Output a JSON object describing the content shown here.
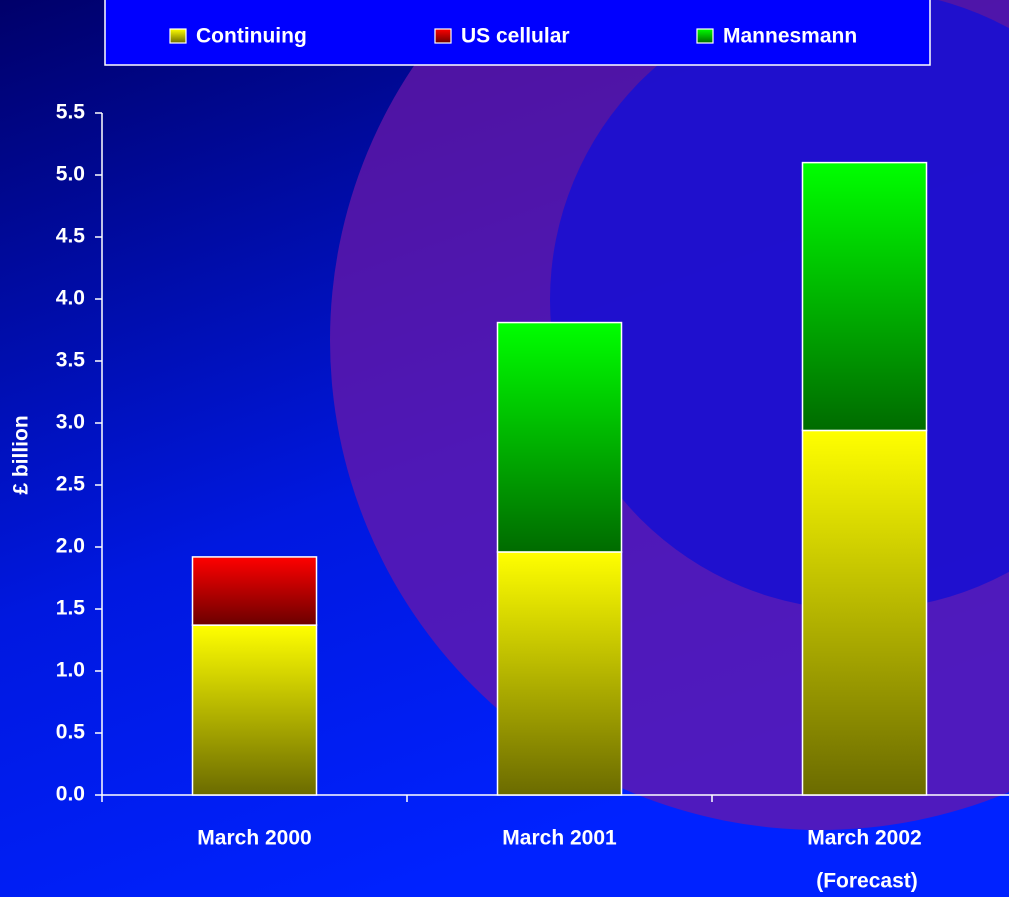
{
  "chart_data": {
    "type": "stacked_bar",
    "y_label": "£ billion",
    "categories": [
      "March 2000",
      "March 2001",
      "March 2002"
    ],
    "annotations": [
      "(Forecast)"
    ],
    "series": [
      {
        "name": "Continuing",
        "color": "#ffff00",
        "values": [
          1.37,
          1.96,
          2.94
        ]
      },
      {
        "name": "US cellular",
        "color": "#ff0000",
        "values": [
          0.55,
          null,
          null
        ]
      },
      {
        "name": "Mannesmann",
        "color": "#00ff00",
        "values": [
          null,
          1.85,
          2.16
        ]
      }
    ],
    "ylim": [
      0,
      5.5
    ],
    "yticks": [
      {
        "value": 0,
        "label": "0.0"
      },
      0.5,
      {
        "value": 1,
        "label": "1.0"
      },
      1.5,
      {
        "value": 2,
        "label": "2.0"
      },
      2.5,
      {
        "value": 3,
        "label": "3.0"
      },
      3.5,
      {
        "value": 4,
        "label": "4.0"
      },
      4.5,
      {
        "value": 5,
        "label": "5.0"
      },
      5.5
    ],
    "legend": "top"
  }
}
